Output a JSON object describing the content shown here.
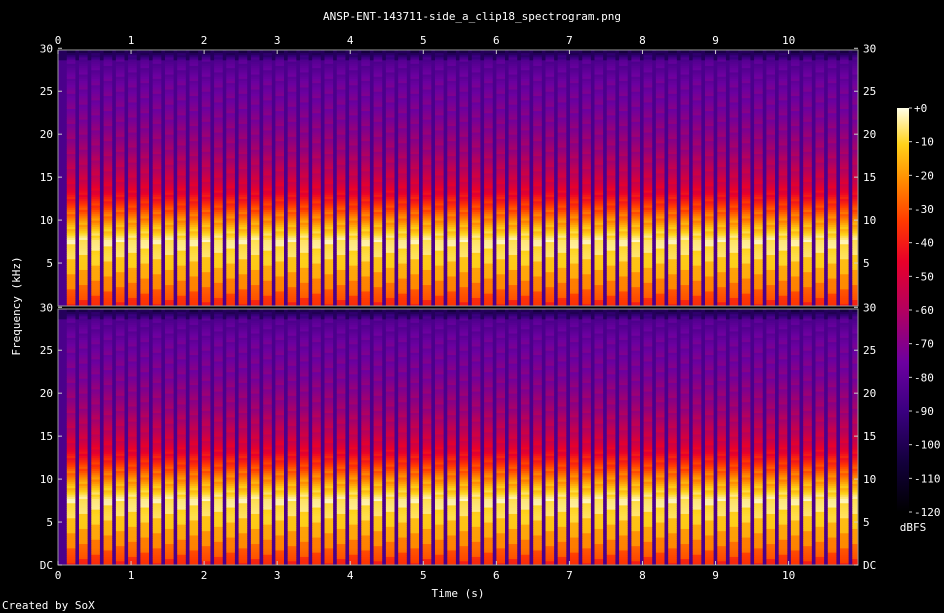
{
  "chart_data": {
    "type": "heatmap",
    "title": "ANSP-ENT-143711-side_a_clip18_spectrogram.png",
    "xlabel": "Time (s)",
    "ylabel": "Frequency (kHz)",
    "xlim": [
      0,
      10.95
    ],
    "x_ticks": [
      "0",
      "1",
      "2",
      "3",
      "4",
      "5",
      "6",
      "7",
      "8",
      "9",
      "10"
    ],
    "channels": [
      {
        "ylim": [
          0,
          29.8
        ],
        "y_ticks": [
          "DC",
          "5",
          "10",
          "15",
          "20",
          "25",
          "30"
        ]
      },
      {
        "ylim": [
          0,
          29.8
        ],
        "y_ticks": [
          "DC",
          "5",
          "10",
          "15",
          "20",
          "25",
          "30"
        ]
      }
    ],
    "colorbar": {
      "label": "dBFS",
      "range": [
        -120,
        0
      ],
      "ticks": [
        "+0",
        "-10",
        "-20",
        "-30",
        "-40",
        "-50",
        "-60",
        "-70",
        "-80",
        "-90",
        "-100",
        "-110",
        "-120"
      ]
    },
    "pulse_period_s": 0.168,
    "energy_profile_db": [
      {
        "khz": 0,
        "db": -38
      },
      {
        "khz": 2,
        "db": -25
      },
      {
        "khz": 5.5,
        "db": -10
      },
      {
        "khz": 7.5,
        "db": -5
      },
      {
        "khz": 9,
        "db": -15
      },
      {
        "khz": 11,
        "db": -30
      },
      {
        "khz": 13,
        "db": -45
      },
      {
        "khz": 15,
        "db": -55
      },
      {
        "khz": 18,
        "db": -65
      },
      {
        "khz": 22,
        "db": -72
      },
      {
        "khz": 26,
        "db": -76
      },
      {
        "khz": 28.5,
        "db": -82
      },
      {
        "khz": 29.8,
        "db": -108
      }
    ],
    "gap_db": -85,
    "footer": "Created by SoX"
  }
}
